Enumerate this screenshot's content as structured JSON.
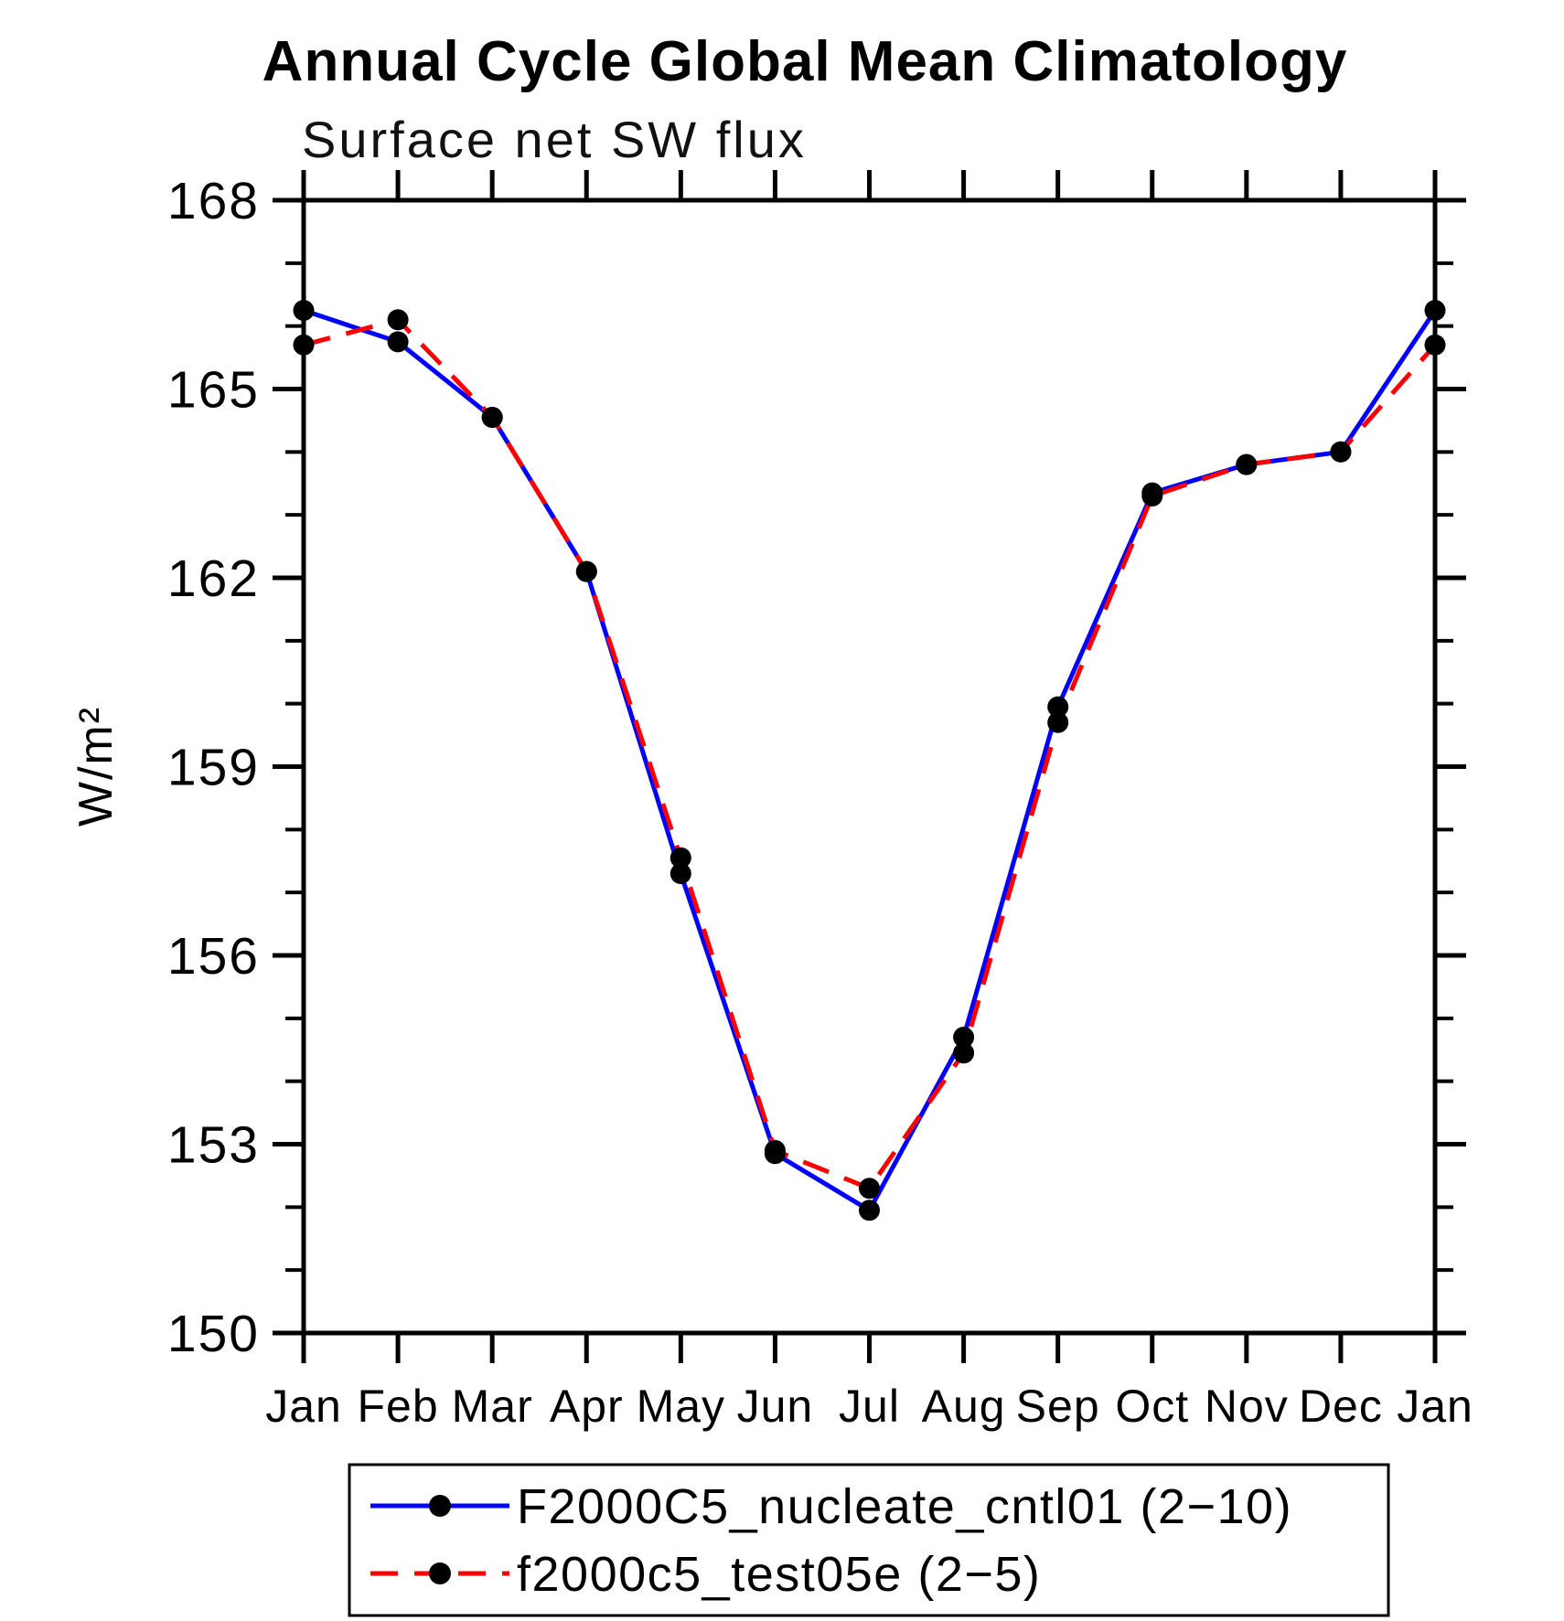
{
  "chart_data": {
    "type": "line",
    "title": "Annual Cycle Global Mean Climatology",
    "subtitle": "Surface net SW flux",
    "ylabel": "W/m²",
    "xlabel": "",
    "x_categories": [
      "Jan",
      "Feb",
      "Mar",
      "Apr",
      "May",
      "Jun",
      "Jul",
      "Aug",
      "Sep",
      "Oct",
      "Nov",
      "Dec",
      "Jan"
    ],
    "ylim": [
      150,
      168
    ],
    "ytick_major": [
      168,
      165,
      162,
      159,
      156,
      153,
      150
    ],
    "ytick_minor_step": 1,
    "grid": false,
    "axis_color": "#000000",
    "marker_color": "#000000",
    "legend_position": "bottom",
    "series": [
      {
        "name": "F2000C5_nucleate_cntl01 (2−10)",
        "color": "#0000ff",
        "line_style": "solid",
        "marker": "filled-circle",
        "values": [
          166.25,
          165.75,
          164.55,
          162.1,
          157.3,
          152.85,
          151.95,
          154.7,
          159.95,
          163.35,
          163.8,
          164.0,
          166.25
        ]
      },
      {
        "name": "f2000c5_test05e (2−5)",
        "color": "#ff0000",
        "line_style": "dashed",
        "marker": "filled-circle",
        "values": [
          165.7,
          166.1,
          164.55,
          162.1,
          157.55,
          152.9,
          152.3,
          154.45,
          159.7,
          163.3,
          163.8,
          164.0,
          165.7
        ]
      }
    ]
  }
}
